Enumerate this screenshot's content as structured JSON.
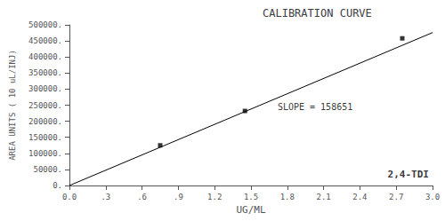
{
  "chart_data": {
    "type": "scatter",
    "title": "CALIBRATION CURVE",
    "xlabel": "UG/ML",
    "ylabel": "AREA UNITS ( 10 uL/INJ)",
    "series": [
      {
        "type": "line",
        "color": "#000000",
        "line_style": "solid",
        "x": [
          0.0,
          3.0
        ],
        "values": [
          0,
          475953
        ]
      },
      {
        "type": "scatter",
        "color": "#000000",
        "marker": "square",
        "x": [
          0.75,
          1.45,
          2.75
        ],
        "values": [
          125000,
          232000,
          458000
        ]
      }
    ],
    "annotations": [
      {
        "text": "SLOPE = 158651",
        "x": 1.72,
        "y": 245000,
        "color": "#000000"
      },
      {
        "text": "2,4-TDI",
        "x": 2.97,
        "y": 18000,
        "color": "#000000"
      }
    ],
    "xlim": [
      0.0,
      3.0
    ],
    "ylim": [
      0,
      500000
    ],
    "xticks": [
      {
        "value": 0.0,
        "label": "0.0"
      },
      {
        "value": 0.3,
        "label": ".3"
      },
      {
        "value": 0.6,
        "label": ".6"
      },
      {
        "value": 0.9,
        "label": ".9"
      },
      1.2,
      1.5,
      1.8,
      2.1,
      2.4,
      2.7,
      {
        "value": 3.0,
        "label": "3.0"
      }
    ],
    "yticks": [
      {
        "value": 0,
        "label": "0."
      },
      {
        "value": 50000,
        "label": "50000."
      },
      {
        "value": 100000,
        "label": "100000."
      },
      {
        "value": 150000,
        "label": "150000."
      },
      {
        "value": 200000,
        "label": "200000."
      },
      {
        "value": 250000,
        "label": "250000."
      },
      {
        "value": 300000,
        "label": "300000."
      },
      {
        "value": 350000,
        "label": "350000."
      },
      {
        "value": 400000,
        "label": "400000."
      },
      {
        "value": 450000,
        "label": "450000."
      },
      {
        "value": 500000,
        "label": "500000."
      }
    ],
    "grid": false
  }
}
